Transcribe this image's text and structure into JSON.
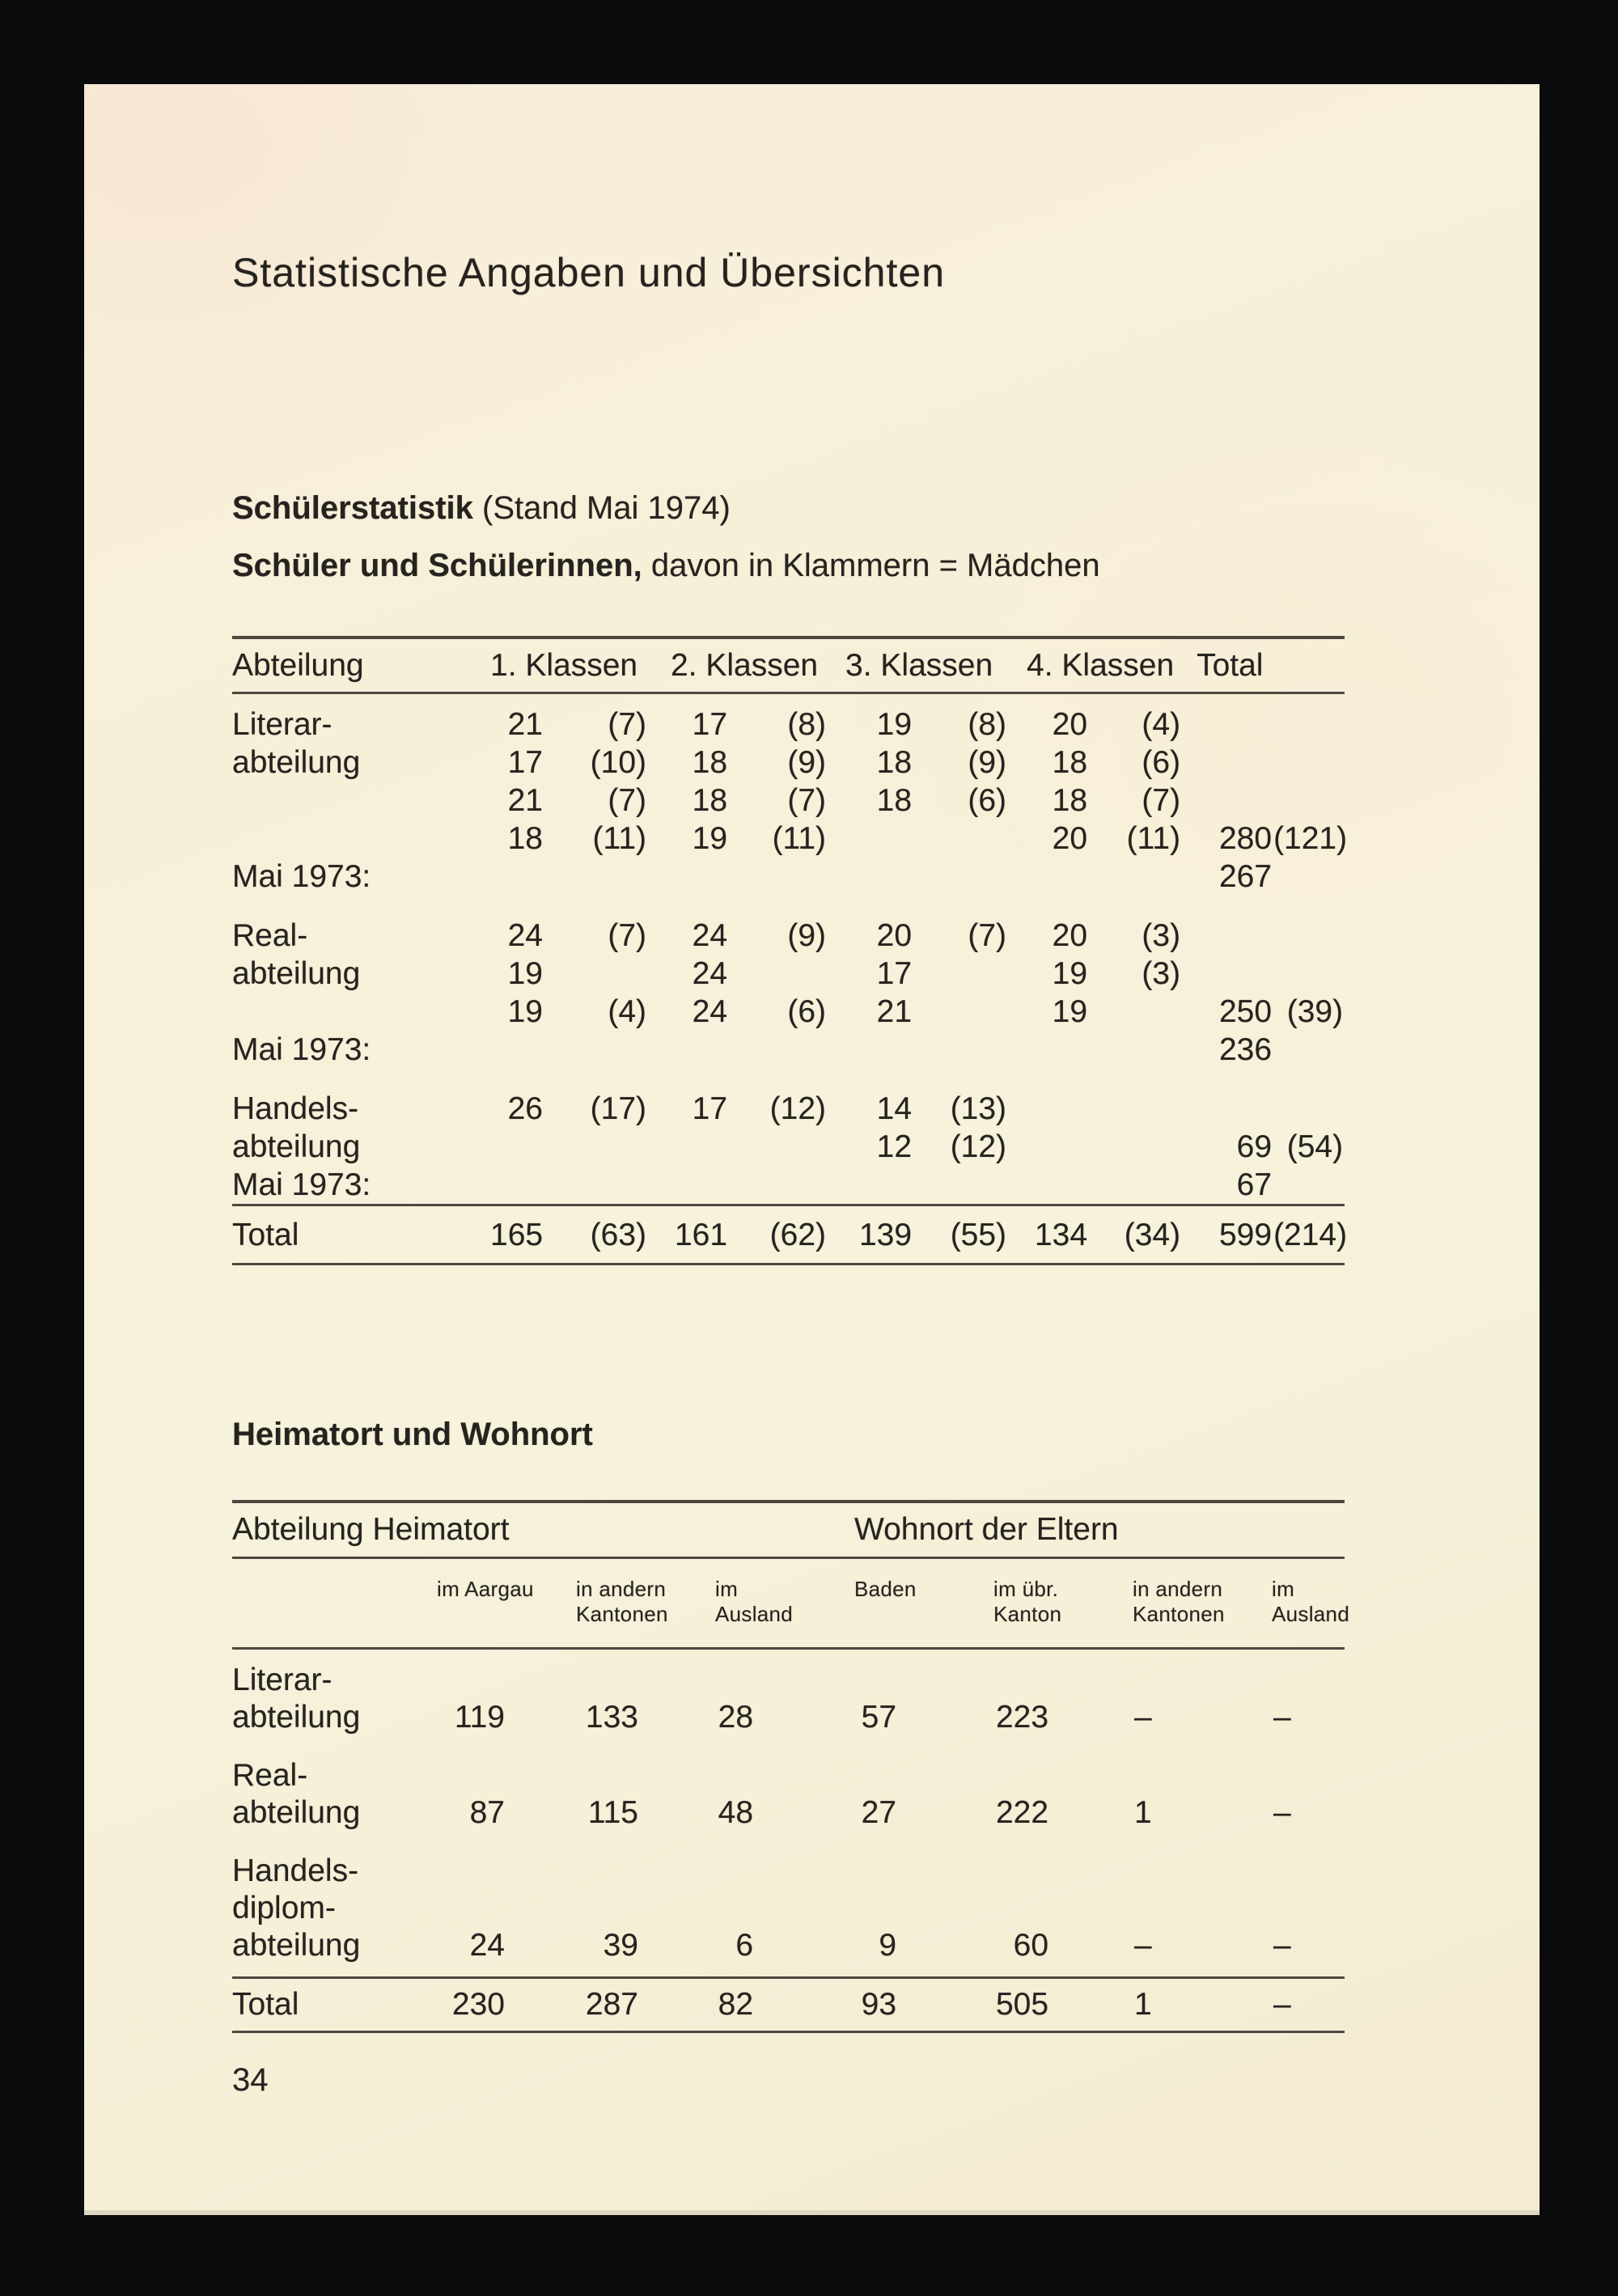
{
  "title": "Statistische Angaben und Übersichten",
  "page_number": "34",
  "colors": {
    "paper": "#f6eed8",
    "background": "#0b0b0e",
    "ink": "#26231f",
    "rule": "#4c4840"
  },
  "schueler": {
    "heading_bold": "Schülerstatistik",
    "heading_rest": " (Stand Mai 1974)",
    "subheading_bold": "Schüler und Schülerinnen,",
    "subheading_rest": " davon in Klammern = Mädchen",
    "table": {
      "headers": [
        "Abteilung",
        "1. Klassen",
        "2. Klassen",
        "3. Klassen",
        "4. Klassen",
        "Total"
      ],
      "rows": [
        {
          "cls": "spacer14",
          "c": []
        },
        {
          "c": [
            "Literar-",
            "21",
            "(7)",
            "17",
            "(8)",
            "19",
            "(8)",
            "20",
            "(4)",
            "",
            ""
          ]
        },
        {
          "c": [
            "abteilung",
            "17",
            "(10)",
            "18",
            "(9)",
            "18",
            "(9)",
            "18",
            "(6)",
            "",
            ""
          ]
        },
        {
          "c": [
            "",
            "21",
            "(7)",
            "18",
            "(7)",
            "18",
            "(6)",
            "18",
            "(7)",
            "",
            ""
          ]
        },
        {
          "c": [
            "",
            "18",
            "(11)",
            "19",
            "(11)",
            "",
            "",
            "20",
            "(11)",
            "280",
            "(121)"
          ]
        },
        {
          "c": [
            "Mai 1973:",
            "",
            "",
            "",
            "",
            "",
            "",
            "",
            "",
            "267",
            ""
          ]
        },
        {
          "cls": "spacer26",
          "c": []
        },
        {
          "c": [
            "Real-",
            "24",
            "(7)",
            "24",
            "(9)",
            "20",
            "(7)",
            "20",
            "(3)",
            "",
            ""
          ]
        },
        {
          "c": [
            "abteilung",
            "19",
            "",
            "24",
            "",
            "17",
            "",
            "19",
            "(3)",
            "",
            ""
          ]
        },
        {
          "c": [
            "",
            "19",
            "(4)",
            "24",
            "(6)",
            "21",
            "",
            "19",
            "",
            "250",
            "(39)"
          ]
        },
        {
          "c": [
            "Mai 1973:",
            "",
            "",
            "",
            "",
            "",
            "",
            "",
            "",
            "236",
            ""
          ]
        },
        {
          "cls": "spacer26",
          "c": []
        },
        {
          "c": [
            "Handels-",
            "26",
            "(17)",
            "17",
            "(12)",
            "14",
            "(13)",
            "",
            "",
            "",
            ""
          ]
        },
        {
          "c": [
            "abteilung",
            "",
            "",
            "",
            "",
            "12",
            "(12)",
            "",
            "",
            "69",
            "(54)"
          ]
        },
        {
          "c": [
            "Mai 1973:",
            "",
            "",
            "",
            "",
            "",
            "",
            "",
            "",
            "67",
            ""
          ]
        },
        {
          "cls": "total",
          "c": [
            "Total",
            "165",
            "(63)",
            "161",
            "(62)",
            "139",
            "(55)",
            "134",
            "(34)",
            "599",
            "(214)"
          ]
        }
      ]
    }
  },
  "heimatort": {
    "heading": "Heimatort und Wohnort",
    "table": {
      "group_headers": [
        "Abteilung Heimatort",
        "Wohnort der Eltern"
      ],
      "subheaders": [
        "im Aargau",
        "in andern\nKantonen",
        "im\nAusland",
        "Baden",
        "im übr.\nKanton",
        "in andern\nKantonen",
        "im\nAusland"
      ],
      "rows": [
        {
          "cls": "dept first",
          "c": [
            "Literar-\nabteilung",
            "119",
            "133",
            "28",
            "57",
            "223",
            "–",
            "–"
          ]
        },
        {
          "cls": "dept",
          "c": [
            "Real-\nabteilung",
            "87",
            "115",
            "48",
            "27",
            "222",
            "1",
            "–"
          ]
        },
        {
          "cls": "dept last",
          "c": [
            "Handels-\ndiplom-\nabteilung",
            "24",
            "39",
            "6",
            "9",
            "60",
            "–",
            "–"
          ]
        },
        {
          "cls": "total",
          "c": [
            "Total",
            "230",
            "287",
            "82",
            "93",
            "505",
            "1",
            "–"
          ]
        }
      ]
    }
  }
}
